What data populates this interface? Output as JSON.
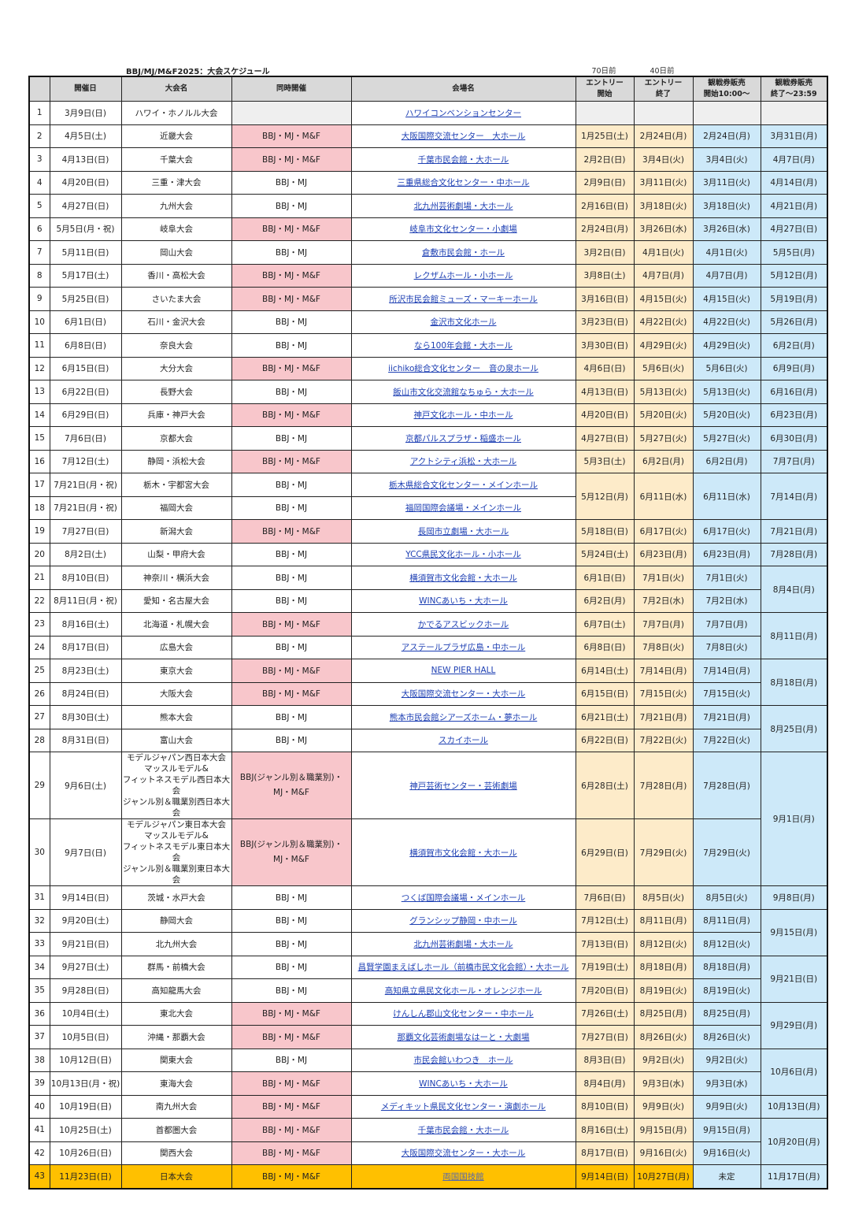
{
  "document": {
    "title": "BBJ/MJ/M&F2025：大会スケジュール",
    "entry_start_note": "70日前",
    "entry_end_note": "40日前"
  },
  "colors": {
    "concurrent_mf": "#f8c6cb",
    "entry": "#fdebc9",
    "ticket": "#cde9f9",
    "final": "#ffc000",
    "header": "#d9d9d9",
    "link": "#1d3fb3"
  },
  "table": {
    "headers": {
      "num": "",
      "date": "開催日",
      "name": "大会名",
      "concurrent": "同時開催",
      "venue": "会場名",
      "entry_start": "エントリー\n開始",
      "entry_end": "エントリー\n終了",
      "ticket_start": "観戦券販売\n開始10:00～",
      "ticket_end": "観戦券販売\n終了～23:59"
    },
    "rows": [
      {
        "num": "1",
        "date": "3月9日(日)",
        "name": "ハワイ・ホノルル大会",
        "concurrent": "",
        "venue": "ハワイコンベンションセンター",
        "entry_start": "",
        "entry_end": "",
        "ticket_start": "",
        "ticket_end": ""
      },
      {
        "num": "2",
        "date": "4月5日(土)",
        "name": "近畿大会",
        "concurrent": "BBJ・MJ・M&F",
        "venue": "大阪国際交流センター　大ホール",
        "entry_start": "1月25日(土)",
        "entry_end": "2月24日(月)",
        "ticket_start": "2月24日(月)",
        "ticket_end": "3月31日(月)"
      },
      {
        "num": "3",
        "date": "4月13日(日)",
        "name": "千葉大会",
        "concurrent": "BBJ・MJ・M&F",
        "venue": "千葉市民会館・大ホール",
        "entry_start": "2月2日(日)",
        "entry_end": "3月4日(火)",
        "ticket_start": "3月4日(火)",
        "ticket_end": "4月7日(月)"
      },
      {
        "num": "4",
        "date": "4月20日(日)",
        "name": "三重・津大会",
        "concurrent": "BBJ・MJ",
        "venue": "三重県総合文化センター・中ホール",
        "entry_start": "2月9日(日)",
        "entry_end": "3月11日(火)",
        "ticket_start": "3月11日(火)",
        "ticket_end": "4月14日(月)"
      },
      {
        "num": "5",
        "date": "4月27日(日)",
        "name": "九州大会",
        "concurrent": "BBJ・MJ",
        "venue": "北九州芸術劇場・大ホール",
        "entry_start": "2月16日(日)",
        "entry_end": "3月18日(火)",
        "ticket_start": "3月18日(火)",
        "ticket_end": "4月21日(月)"
      },
      {
        "num": "6",
        "date": "5月5日(月・祝)",
        "name": "岐阜大会",
        "concurrent": "BBJ・MJ・M&F",
        "venue": "岐阜市文化センター・小劇場",
        "entry_start": "2月24日(月)",
        "entry_end": "3月26日(水)",
        "ticket_start": "3月26日(水)",
        "ticket_end": "4月27日(日)"
      },
      {
        "num": "7",
        "date": "5月11日(日)",
        "name": "岡山大会",
        "concurrent": "BBJ・MJ",
        "venue": "倉敷市民会館・ホール",
        "entry_start": "3月2日(日)",
        "entry_end": "4月1日(火)",
        "ticket_start": "4月1日(火)",
        "ticket_end": "5月5日(月)"
      },
      {
        "num": "8",
        "date": "5月17日(土)",
        "name": "香川・高松大会",
        "concurrent": "BBJ・MJ・M&F",
        "venue": "レクザムホール・小ホール",
        "entry_start": "3月8日(土)",
        "entry_end": "4月7日(月)",
        "ticket_start": "4月7日(月)",
        "ticket_end": "5月12日(月)"
      },
      {
        "num": "9",
        "date": "5月25日(日)",
        "name": "さいたま大会",
        "concurrent": "BBJ・MJ・M&F",
        "venue": "所沢市民会館ミューズ・マーキーホール",
        "entry_start": "3月16日(日)",
        "entry_end": "4月15日(火)",
        "ticket_start": "4月15日(火)",
        "ticket_end": "5月19日(月)"
      },
      {
        "num": "10",
        "date": "6月1日(日)",
        "name": "石川・金沢大会",
        "concurrent": "BBJ・MJ",
        "venue": "金沢市文化ホール",
        "entry_start": "3月23日(日)",
        "entry_end": "4月22日(火)",
        "ticket_start": "4月22日(火)",
        "ticket_end": "5月26日(月)"
      },
      {
        "num": "11",
        "date": "6月8日(日)",
        "name": "奈良大会",
        "concurrent": "BBJ・MJ",
        "venue": "なら100年会館・大ホール",
        "entry_start": "3月30日(日)",
        "entry_end": "4月29日(火)",
        "ticket_start": "4月29日(火)",
        "ticket_end": "6月2日(月)"
      },
      {
        "num": "12",
        "date": "6月15日(日)",
        "name": "大分大会",
        "concurrent": "BBJ・MJ・M&F",
        "venue": "iichiko総合文化センター　音の泉ホール",
        "entry_start": "4月6日(日)",
        "entry_end": "5月6日(火)",
        "ticket_start": "5月6日(火)",
        "ticket_end": "6月9日(月)"
      },
      {
        "num": "13",
        "date": "6月22日(日)",
        "name": "長野大会",
        "concurrent": "BBJ・MJ",
        "venue": "飯山市文化交流館なちゅら・大ホール",
        "entry_start": "4月13日(日)",
        "entry_end": "5月13日(火)",
        "ticket_start": "5月13日(火)",
        "ticket_end": "6月16日(月)"
      },
      {
        "num": "14",
        "date": "6月29日(日)",
        "name": "兵庫・神戸大会",
        "concurrent": "BBJ・MJ・M&F",
        "venue": "神戸文化ホール・中ホール",
        "entry_start": "4月20日(日)",
        "entry_end": "5月20日(火)",
        "ticket_start": "5月20日(火)",
        "ticket_end": "6月23日(月)"
      },
      {
        "num": "15",
        "date": "7月6日(日)",
        "name": "京都大会",
        "concurrent": "BBJ・MJ",
        "venue": "京都パルスプラザ・稲盛ホール",
        "entry_start": "4月27日(日)",
        "entry_end": "5月27日(火)",
        "ticket_start": "5月27日(火)",
        "ticket_end": "6月30日(月)"
      },
      {
        "num": "16",
        "date": "7月12日(土)",
        "name": "静岡・浜松大会",
        "concurrent": "BBJ・MJ・M&F",
        "venue": "アクトシティ浜松・大ホール",
        "entry_start": "5月3日(土)",
        "entry_end": "6月2日(月)",
        "ticket_start": "6月2日(月)",
        "ticket_end": "7月7日(月)"
      },
      {
        "num": "17",
        "date": "7月21日(月・祝)",
        "name": "栃木・宇都宮大会",
        "concurrent": "BBJ・MJ",
        "venue": "栃木県総合文化センター・メインホール",
        "entry_start": "5月12日(月)",
        "entry_end": "6月11日(水)",
        "ticket_start": "6月11日(水)",
        "ticket_end": "7月14日(月)"
      },
      {
        "num": "18",
        "date": "7月21日(月・祝)",
        "name": "福岡大会",
        "concurrent": "BBJ・MJ",
        "venue": "福岡国際会議場・メインホール",
        "entry_start": null,
        "entry_end": null,
        "ticket_start": null,
        "ticket_end": null
      },
      {
        "num": "19",
        "date": "7月27日(日)",
        "name": "新潟大会",
        "concurrent": "BBJ・MJ・M&F",
        "venue": "長岡市立劇場・大ホール",
        "entry_start": "5月18日(日)",
        "entry_end": "6月17日(火)",
        "ticket_start": "6月17日(火)",
        "ticket_end": "7月21日(月)"
      },
      {
        "num": "20",
        "date": "8月2日(土)",
        "name": "山梨・甲府大会",
        "concurrent": "BBJ・MJ",
        "venue": "YCC県民文化ホール・小ホール",
        "entry_start": "5月24日(土)",
        "entry_end": "6月23日(月)",
        "ticket_start": "6月23日(月)",
        "ticket_end": "7月28日(月)"
      },
      {
        "num": "21",
        "date": "8月10日(日)",
        "name": "神奈川・横浜大会",
        "concurrent": "BBJ・MJ",
        "venue": "横須賀市文化会館・大ホール",
        "entry_start": "6月1日(日)",
        "entry_end": "7月1日(火)",
        "ticket_start": "7月1日(火)",
        "ticket_end": "8月4日(月)"
      },
      {
        "num": "22",
        "date": "8月11日(月・祝)",
        "name": "愛知・名古屋大会",
        "concurrent": "BBJ・MJ",
        "venue": "WINCあいち・大ホール",
        "entry_start": "6月2日(月)",
        "entry_end": "7月2日(水)",
        "ticket_start": "7月2日(水)",
        "ticket_end": null
      },
      {
        "num": "23",
        "date": "8月16日(土)",
        "name": "北海道・札幌大会",
        "concurrent": "BBJ・MJ・M&F",
        "venue": "かでるアスビックホール",
        "entry_start": "6月7日(土)",
        "entry_end": "7月7日(月)",
        "ticket_start": "7月7日(月)",
        "ticket_end": "8月11日(月)"
      },
      {
        "num": "24",
        "date": "8月17日(日)",
        "name": "広島大会",
        "concurrent": "BBJ・MJ",
        "venue": "アステールプラザ広島・中ホール",
        "entry_start": "6月8日(日)",
        "entry_end": "7月8日(火)",
        "ticket_start": "7月8日(火)",
        "ticket_end": null
      },
      {
        "num": "25",
        "date": "8月23日(土)",
        "name": "東京大会",
        "concurrent": "BBJ・MJ・M&F",
        "venue": "NEW PIER HALL",
        "entry_start": "6月14日(土)",
        "entry_end": "7月14日(月)",
        "ticket_start": "7月14日(月)",
        "ticket_end": "8月18日(月)"
      },
      {
        "num": "26",
        "date": "8月24日(日)",
        "name": "大阪大会",
        "concurrent": "BBJ・MJ・M&F",
        "venue": "大阪国際交流センター・大ホール",
        "entry_start": "6月15日(日)",
        "entry_end": "7月15日(火)",
        "ticket_start": "7月15日(火)",
        "ticket_end": null
      },
      {
        "num": "27",
        "date": "8月30日(土)",
        "name": "熊本大会",
        "concurrent": "BBJ・MJ",
        "venue": "熊本市民会館シアーズホーム・夢ホール",
        "entry_start": "6月21日(土)",
        "entry_end": "7月21日(月)",
        "ticket_start": "7月21日(月)",
        "ticket_end": "8月25日(月)"
      },
      {
        "num": "28",
        "date": "8月31日(日)",
        "name": "富山大会",
        "concurrent": "BBJ・MJ",
        "venue": "スカイホール",
        "entry_start": "6月22日(日)",
        "entry_end": "7月22日(火)",
        "ticket_start": "7月22日(火)",
        "ticket_end": null
      },
      {
        "num": "29",
        "date": "9月6日(土)",
        "name": "モデルジャパン西日本大会\nマッスルモデル&\nフィットネスモデル西日本大会\nジャンル別＆職業別西日本大会",
        "concurrent": "BBJ(ジャンル別＆職業別)・\nMJ・M&F",
        "venue": "神戸芸術センター・芸術劇場",
        "entry_start": "6月28日(土)",
        "entry_end": "7月28日(月)",
        "ticket_start": "7月28日(月)",
        "ticket_end": "9月1日(月)"
      },
      {
        "num": "30",
        "date": "9月7日(日)",
        "name": "モデルジャパン東日本大会\nマッスルモデル&\nフィットネスモデル東日本大会\nジャンル別＆職業別東日本大会",
        "concurrent": "BBJ(ジャンル別＆職業別)・\nMJ・M&F",
        "venue": "横須賀市文化会館・大ホール",
        "entry_start": "6月29日(日)",
        "entry_end": "7月29日(火)",
        "ticket_start": "7月29日(火)",
        "ticket_end": null
      },
      {
        "num": "31",
        "date": "9月14日(日)",
        "name": "茨城・水戸大会",
        "concurrent": "BBJ・MJ",
        "venue": "つくば国際会議場・メインホール",
        "entry_start": "7月6日(日)",
        "entry_end": "8月5日(火)",
        "ticket_start": "8月5日(火)",
        "ticket_end": "9月8日(月)"
      },
      {
        "num": "32",
        "date": "9月20日(土)",
        "name": "静岡大会",
        "concurrent": "BBJ・MJ",
        "venue": "グランシップ静岡・中ホール",
        "entry_start": "7月12日(土)",
        "entry_end": "8月11日(月)",
        "ticket_start": "8月11日(月)",
        "ticket_end": "9月15日(月)"
      },
      {
        "num": "33",
        "date": "9月21日(日)",
        "name": "北九州大会",
        "concurrent": "BBJ・MJ",
        "venue": "北九州芸術劇場・大ホール",
        "entry_start": "7月13日(日)",
        "entry_end": "8月12日(火)",
        "ticket_start": "8月12日(火)",
        "ticket_end": null
      },
      {
        "num": "34",
        "date": "9月27日(土)",
        "name": "群馬・前橋大会",
        "concurrent": "BBJ・MJ",
        "venue": "昌賢学園まえばしホール（前橋市民文化会館）・大ホール",
        "entry_start": "7月19日(土)",
        "entry_end": "8月18日(月)",
        "ticket_start": "8月18日(月)",
        "ticket_end": "9月21日(日)"
      },
      {
        "num": "35",
        "date": "9月28日(日)",
        "name": "高知龍馬大会",
        "concurrent": "BBJ・MJ",
        "venue": "高知県立県民文化ホール・オレンジホール",
        "entry_start": "7月20日(日)",
        "entry_end": "8月19日(火)",
        "ticket_start": "8月19日(火)",
        "ticket_end": null
      },
      {
        "num": "36",
        "date": "10月4日(土)",
        "name": "東北大会",
        "concurrent": "BBJ・MJ・M&F",
        "venue": "けんしん郡山文化センター・中ホール",
        "entry_start": "7月26日(土)",
        "entry_end": "8月25日(月)",
        "ticket_start": "8月25日(月)",
        "ticket_end": "9月29日(月)"
      },
      {
        "num": "37",
        "date": "10月5日(日)",
        "name": "沖縄・那覇大会",
        "concurrent": "BBJ・MJ・M&F",
        "venue": "那覇文化芸術劇場なはーと・大劇場",
        "entry_start": "7月27日(日)",
        "entry_end": "8月26日(火)",
        "ticket_start": "8月26日(火)",
        "ticket_end": null
      },
      {
        "num": "38",
        "date": "10月12日(日)",
        "name": "関東大会",
        "concurrent": "BBJ・MJ",
        "venue": "市民会館いわつき　ホール",
        "entry_start": "8月3日(日)",
        "entry_end": "9月2日(火)",
        "ticket_start": "9月2日(火)",
        "ticket_end": "10月6日(月)"
      },
      {
        "num": "39",
        "date": "10月13日(月・祝)",
        "name": "東海大会",
        "concurrent": "BBJ・MJ・M&F",
        "venue": "WINCあいち・大ホール",
        "entry_start": "8月4日(月)",
        "entry_end": "9月3日(水)",
        "ticket_start": "9月3日(水)",
        "ticket_end": null
      },
      {
        "num": "40",
        "date": "10月19日(日)",
        "name": "南九州大会",
        "concurrent": "BBJ・MJ・M&F",
        "venue": "メディキット県民文化センター・演劇ホール",
        "entry_start": "8月10日(日)",
        "entry_end": "9月9日(火)",
        "ticket_start": "9月9日(火)",
        "ticket_end": "10月13日(月)"
      },
      {
        "num": "41",
        "date": "10月25日(土)",
        "name": "首都圏大会",
        "concurrent": "BBJ・MJ・M&F",
        "venue": "千葉市民会館・大ホール",
        "entry_start": "8月16日(土)",
        "entry_end": "9月15日(月)",
        "ticket_start": "9月15日(月)",
        "ticket_end": "10月20日(月)"
      },
      {
        "num": "42",
        "date": "10月26日(日)",
        "name": "関西大会",
        "concurrent": "BBJ・MJ・M&F",
        "venue": "大阪国際交流センター・大ホール",
        "entry_start": "8月17日(日)",
        "entry_end": "9月16日(火)",
        "ticket_start": "9月16日(火)",
        "ticket_end": null
      },
      {
        "num": "43",
        "date": "11月23日(日)",
        "name": "日本大会",
        "concurrent": "BBJ・MJ・M&F",
        "venue": "両国国技館",
        "entry_start": "9月14日(日)",
        "entry_end": "10月27日(月)",
        "ticket_start": "未定",
        "ticket_end": "11月17日(月)",
        "highlight": true
      }
    ]
  }
}
